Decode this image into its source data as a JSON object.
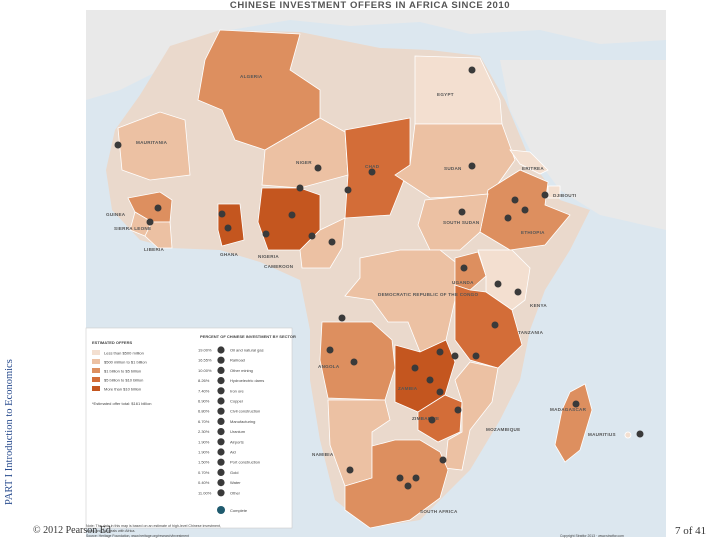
{
  "title": "CHINESE INVESTMENT OFFERS IN AFRICA SINCE 2010",
  "side_label": "PART I Introduction to Economics",
  "copyright": "© 2012 Pearson Ed",
  "page_number": "7 of 41",
  "colors": {
    "water": "#dce7ef",
    "land_outside": "#e9e9e9",
    "tier1": "#f3dfd0",
    "tier2": "#ecc1a3",
    "tier3": "#dd8f5f",
    "tier4": "#d36d38",
    "tier5": "#c4561f",
    "icon": "#3a3a3a"
  },
  "countries": [
    {
      "id": "algeria",
      "label": "ALGERIA",
      "tier": 3
    },
    {
      "id": "egypt",
      "label": "EGYPT",
      "tier": 1
    },
    {
      "id": "mauritania",
      "label": "MAURITANIA",
      "tier": 2
    },
    {
      "id": "niger",
      "label": "NIGER",
      "tier": 2
    },
    {
      "id": "chad",
      "label": "CHAD",
      "tier": 4
    },
    {
      "id": "sudan",
      "label": "SUDAN",
      "tier": 2
    },
    {
      "id": "eritrea",
      "label": "ERITREA",
      "tier": 1
    },
    {
      "id": "djibouti",
      "label": "DJIBOUTI",
      "tier": 1
    },
    {
      "id": "ethiopia",
      "label": "ETHIOPIA",
      "tier": 3
    },
    {
      "id": "south-sudan",
      "label": "SOUTH SUDAN",
      "tier": 2
    },
    {
      "id": "guinea",
      "label": "GUINEA",
      "tier": 3
    },
    {
      "id": "sierra-leone",
      "label": "SIERRA LEONE",
      "tier": 2
    },
    {
      "id": "liberia",
      "label": "LIBERIA",
      "tier": 2
    },
    {
      "id": "ghana",
      "label": "GHANA",
      "tier": 5
    },
    {
      "id": "nigeria",
      "label": "NIGERIA",
      "tier": 5
    },
    {
      "id": "cameroon",
      "label": "CAMEROON",
      "tier": 2
    },
    {
      "id": "drc",
      "label": "DEMOCRATIC REPUBLIC OF THE CONGO",
      "tier": 2
    },
    {
      "id": "uganda",
      "label": "UGANDA",
      "tier": 3
    },
    {
      "id": "kenya",
      "label": "KENYA",
      "tier": 1
    },
    {
      "id": "tanzania",
      "label": "TANZANIA",
      "tier": 4
    },
    {
      "id": "angola",
      "label": "ANGOLA",
      "tier": 3
    },
    {
      "id": "zambia",
      "label": "ZAMBIA",
      "tier": 5
    },
    {
      "id": "zimbabwe",
      "label": "ZIMBABWE",
      "tier": 4
    },
    {
      "id": "mozambique",
      "label": "MOZAMBIQUE",
      "tier": 2
    },
    {
      "id": "namibia",
      "label": "NAMIBIA",
      "tier": 2
    },
    {
      "id": "madagascar",
      "label": "MADAGASCAR",
      "tier": 3
    },
    {
      "id": "mauritius",
      "label": "MAURITIUS",
      "tier": 1
    },
    {
      "id": "south-africa",
      "label": "SOUTH AFRICA",
      "tier": 3
    }
  ],
  "legend": {
    "offers_title": "ESTIMATED OFFERS",
    "offers": [
      {
        "label": "Less than $500 million",
        "tier": 1
      },
      {
        "label": "$500 million to $1 billion",
        "tier": 2
      },
      {
        "label": "$1 billion to $5 billion",
        "tier": 3
      },
      {
        "label": "$5 billion to $10 billion",
        "tier": 4
      },
      {
        "label": "More than $10 billion",
        "tier": 5
      }
    ],
    "total_note": "*Estimated offer total: $161 billion",
    "sector_title": "PERCENT OF CHINESE INVESTMENT BY SECTOR",
    "sectors": [
      {
        "pct": "19.00%",
        "label": "Oil and natural gas",
        "icon": "oil-icon"
      },
      {
        "pct": "16.55%",
        "label": "Railroad",
        "icon": "railroad-icon"
      },
      {
        "pct": "10.00%",
        "label": "Other mining",
        "icon": "mining-icon"
      },
      {
        "pct": "8.26%",
        "label": "Hydroelectric dams",
        "icon": "dam-icon"
      },
      {
        "pct": "7.40%",
        "label": "Iron ore",
        "icon": "iron-ore-icon"
      },
      {
        "pct": "6.90%",
        "label": "Copper",
        "icon": "copper-icon"
      },
      {
        "pct": "6.80%",
        "label": "Civil construction",
        "icon": "construction-icon"
      },
      {
        "pct": "6.70%",
        "label": "Manufacturing",
        "icon": "factory-icon"
      },
      {
        "pct": "2.30%",
        "label": "Uranium",
        "icon": "uranium-icon"
      },
      {
        "pct": "1.90%",
        "label": "Airports",
        "icon": "airport-icon"
      },
      {
        "pct": "1.90%",
        "label": "Aid",
        "icon": "aid-icon"
      },
      {
        "pct": "1.50%",
        "label": "Port construction",
        "icon": "port-icon"
      },
      {
        "pct": "0.70%",
        "label": "Gold",
        "icon": "gold-icon"
      },
      {
        "pct": "0.40%",
        "label": "Water",
        "icon": "water-icon"
      },
      {
        "pct": "11.00%",
        "label": "Other",
        "icon": "other-icon"
      }
    ],
    "complete_label": "Complete",
    "note_line1": "Note: The data in this map is based on an estimate of high-level Chinese investment,",
    "note_line2": "loans and aid deals with Africa.",
    "source": "Source: Heritage Foundation, www.heritage.org/research/investment",
    "credit": "Copyright Stratfor 2013 · www.stratfor.com"
  }
}
